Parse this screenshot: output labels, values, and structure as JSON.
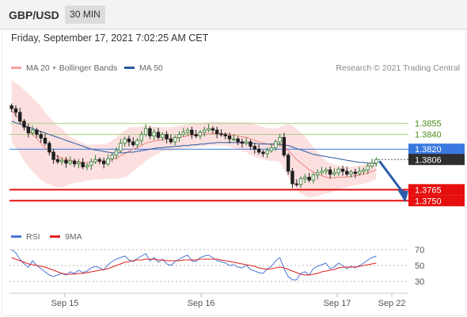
{
  "header": {
    "pair": "GBP/USD",
    "timeframe": "30 MIN"
  },
  "date_label": "Friday, September 17, 2021 7:02:25 AM CET",
  "credit": "Research © 2021 Trading Central",
  "legend": {
    "price": [
      {
        "label": "MA 20 + Bollinger Bands",
        "color": "#f08080"
      },
      {
        "label": "MA 50",
        "color": "#2a5a9c"
      }
    ],
    "rsi": [
      {
        "label": "RSI",
        "color": "#4a74d6"
      },
      {
        "label": "9MA",
        "color": "#e02020"
      }
    ]
  },
  "colors": {
    "up": "#2c7a2c",
    "down": "#1f1f1f",
    "resistance": "#a8cf7d",
    "support": "#e60f0f",
    "current": "#3a78e0",
    "arrow": "#2a5caa"
  },
  "chart_data": [
    {
      "type": "candlestick",
      "ylim": [
        1.3718,
        1.3915
      ],
      "x_ticks": [
        "Sep 15",
        "Sep 16",
        "Sep 17",
        "Sep 22"
      ],
      "levels": [
        {
          "value": "1.3855",
          "kind": "resistance"
        },
        {
          "value": "1.3840",
          "kind": "resistance"
        },
        {
          "value": "1.3820",
          "kind": "pivot"
        },
        {
          "value": "1.3806",
          "kind": "current"
        },
        {
          "value": "1.3765",
          "kind": "support"
        },
        {
          "value": "1.3750",
          "kind": "support"
        }
      ],
      "series_close": [
        1.3875,
        1.387,
        1.3858,
        1.385,
        1.3842,
        1.3846,
        1.384,
        1.3835,
        1.3828,
        1.3816,
        1.3806,
        1.3803,
        1.3805,
        1.3801,
        1.3804,
        1.38,
        1.3802,
        1.3796,
        1.3798,
        1.3803,
        1.3806,
        1.3804,
        1.38,
        1.3807,
        1.3812,
        1.3818,
        1.3828,
        1.3834,
        1.383,
        1.3826,
        1.3832,
        1.384,
        1.3848,
        1.3838,
        1.3843,
        1.3836,
        1.384,
        1.3834,
        1.383,
        1.3836,
        1.384,
        1.3843,
        1.3846,
        1.384,
        1.3838,
        1.3843,
        1.3846,
        1.3848,
        1.3846,
        1.3841,
        1.384,
        1.3838,
        1.3834,
        1.3834,
        1.383,
        1.3828,
        1.383,
        1.3824,
        1.382,
        1.3816,
        1.3814,
        1.3818,
        1.3822,
        1.383,
        1.3836,
        1.3812,
        1.379,
        1.3773,
        1.3772,
        1.378,
        1.3782,
        1.3778,
        1.3785,
        1.3788,
        1.379,
        1.3792,
        1.3786,
        1.3788,
        1.3793,
        1.379,
        1.3786,
        1.3789,
        1.3787,
        1.379,
        1.3792,
        1.3797,
        1.3801,
        1.3806
      ],
      "ma20": [
        1.3872,
        1.3866,
        1.386,
        1.3852,
        1.3846,
        1.384,
        1.3834,
        1.3828,
        1.3822,
        1.3818,
        1.3814,
        1.381,
        1.3808,
        1.3806,
        1.3805,
        1.3804,
        1.3803,
        1.3802,
        1.3802,
        1.3802,
        1.3803,
        1.3803,
        1.3803,
        1.3804,
        1.3806,
        1.3808,
        1.3811,
        1.3814,
        1.3817,
        1.382,
        1.3822,
        1.3825,
        1.3828,
        1.383,
        1.3831,
        1.3832,
        1.3833,
        1.3834,
        1.3834,
        1.3835,
        1.3836,
        1.3837,
        1.3838,
        1.3839,
        1.3839,
        1.384,
        1.384,
        1.3841,
        1.3841,
        1.3841,
        1.3841,
        1.3841,
        1.384,
        1.3839,
        1.3838,
        1.3837,
        1.3836,
        1.3834,
        1.3832,
        1.383,
        1.3828,
        1.3827,
        1.3826,
        1.3826,
        1.3826,
        1.3823,
        1.3818,
        1.3812,
        1.3806,
        1.3801,
        1.3797,
        1.3792,
        1.3789,
        1.3786,
        1.3784,
        1.3782,
        1.3781,
        1.3781,
        1.3782,
        1.3782,
        1.3782,
        1.3783,
        1.3784,
        1.3785,
        1.3786,
        1.3788,
        1.379,
        1.3792
      ],
      "ma50": [
        1.3858,
        1.3856,
        1.3854,
        1.3852,
        1.385,
        1.3848,
        1.3846,
        1.3844,
        1.3842,
        1.384,
        1.3838,
        1.3836,
        1.3834,
        1.3832,
        1.383,
        1.3828,
        1.3826,
        1.3824,
        1.3822,
        1.382,
        1.3819,
        1.3818,
        1.3817,
        1.3816,
        1.3815,
        1.3815,
        1.3815,
        1.3815,
        1.3816,
        1.3816,
        1.3817,
        1.3818,
        1.3819,
        1.382,
        1.3821,
        1.3822,
        1.3822,
        1.3823,
        1.3823,
        1.3824,
        1.3824,
        1.3825,
        1.3825,
        1.3826,
        1.3826,
        1.3827,
        1.3827,
        1.3828,
        1.3828,
        1.3829,
        1.3829,
        1.3829,
        1.3829,
        1.3829,
        1.3829,
        1.3829,
        1.3829,
        1.3828,
        1.3828,
        1.3827,
        1.3827,
        1.3827,
        1.3827,
        1.3827,
        1.3827,
        1.3826,
        1.3825,
        1.3823,
        1.3821,
        1.3819,
        1.3817,
        1.3815,
        1.3813,
        1.3812,
        1.3811,
        1.381,
        1.3809,
        1.3808,
        1.3807,
        1.3806,
        1.3805,
        1.3804,
        1.3803,
        1.3802,
        1.3802,
        1.3801,
        1.3801,
        1.38
      ],
      "bb_width": [
        0.0042,
        0.0044,
        0.0046,
        0.0048,
        0.005,
        0.005,
        0.005,
        0.005,
        0.0048,
        0.0046,
        0.0044,
        0.0042,
        0.004,
        0.0036,
        0.0032,
        0.003,
        0.0028,
        0.0026,
        0.0024,
        0.0024,
        0.0024,
        0.0024,
        0.0024,
        0.0024,
        0.0026,
        0.0028,
        0.003,
        0.0032,
        0.0032,
        0.003,
        0.0028,
        0.0026,
        0.0024,
        0.0022,
        0.002,
        0.0018,
        0.0016,
        0.0016,
        0.0016,
        0.0016,
        0.0016,
        0.0016,
        0.0016,
        0.0016,
        0.0016,
        0.0016,
        0.0016,
        0.0016,
        0.0016,
        0.0016,
        0.0016,
        0.0016,
        0.0016,
        0.0018,
        0.0018,
        0.002,
        0.002,
        0.0022,
        0.0022,
        0.0022,
        0.0022,
        0.0022,
        0.0022,
        0.0022,
        0.0024,
        0.003,
        0.0036,
        0.004,
        0.0042,
        0.0042,
        0.004,
        0.0038,
        0.0034,
        0.003,
        0.0026,
        0.0022,
        0.002,
        0.0018,
        0.0016,
        0.0015,
        0.0014,
        0.0013,
        0.0013,
        0.0013,
        0.0013,
        0.0013,
        0.0013,
        0.0013
      ],
      "projection_target": 1.375
    },
    {
      "type": "line",
      "ylim": [
        20,
        80
      ],
      "y_ticks": [
        "70",
        "50",
        "30"
      ],
      "series": [
        {
          "name": "RSI",
          "values": [
            70,
            66,
            58,
            52,
            48,
            56,
            50,
            46,
            42,
            38,
            36,
            38,
            40,
            38,
            42,
            40,
            44,
            41,
            43,
            47,
            49,
            47,
            44,
            51,
            55,
            58,
            60,
            62,
            57,
            55,
            59,
            62,
            65,
            56,
            60,
            54,
            58,
            52,
            50,
            55,
            58,
            61,
            63,
            56,
            55,
            60,
            62,
            63,
            60,
            56,
            55,
            53,
            50,
            51,
            48,
            47,
            50,
            45,
            43,
            41,
            40,
            46,
            49,
            56,
            60,
            46,
            36,
            32,
            32,
            40,
            42,
            38,
            46,
            49,
            51,
            53,
            46,
            48,
            53,
            50,
            46,
            49,
            47,
            50,
            53,
            57,
            60,
            62
          ]
        },
        {
          "name": "9MA",
          "values": [
            60,
            58,
            56,
            54,
            52,
            51,
            50,
            49,
            48,
            46,
            44,
            42,
            40,
            39,
            39,
            39,
            40,
            40,
            41,
            42,
            43,
            44,
            45,
            46,
            48,
            50,
            52,
            54,
            55,
            56,
            57,
            57,
            58,
            58,
            58,
            57,
            57,
            56,
            56,
            56,
            56,
            57,
            57,
            57,
            57,
            58,
            58,
            58,
            58,
            58,
            57,
            56,
            55,
            54,
            53,
            52,
            51,
            50,
            49,
            47,
            46,
            45,
            46,
            47,
            48,
            47,
            45,
            43,
            41,
            39,
            38,
            38,
            39,
            40,
            42,
            43,
            44,
            45,
            47,
            48,
            48,
            48,
            48,
            49,
            50,
            51,
            52,
            53
          ]
        }
      ]
    }
  ]
}
